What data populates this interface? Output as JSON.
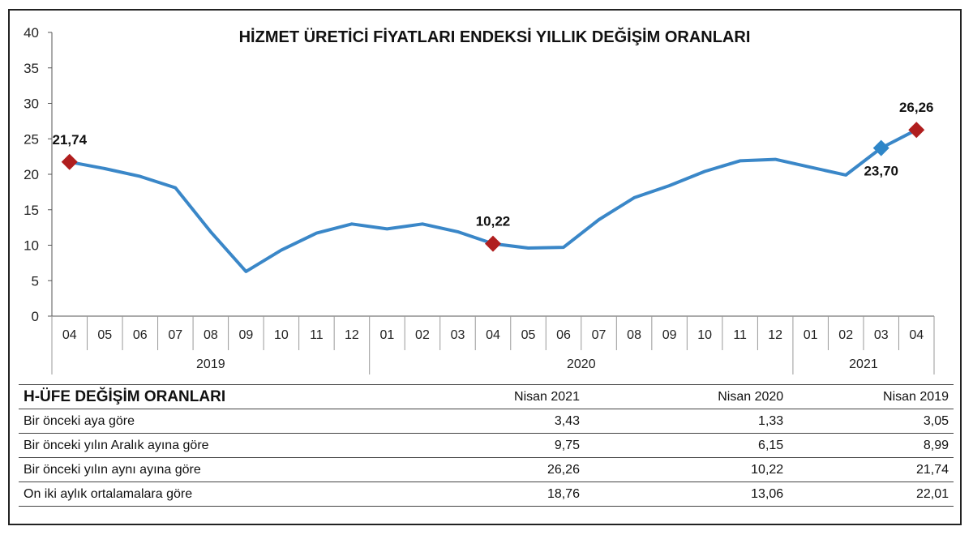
{
  "chart_data": {
    "type": "line",
    "title": "HİZMET ÜRETİCİ FİYATLARI ENDEKSİ YILLIK DEĞİŞİM ORANLARI",
    "ylim": [
      0,
      40
    ],
    "yticks": [
      "0",
      "5",
      "10",
      "15",
      "20",
      "25",
      "30",
      "35",
      "40"
    ],
    "grid": false,
    "categories": [
      "04",
      "05",
      "06",
      "07",
      "08",
      "09",
      "10",
      "11",
      "12",
      "01",
      "02",
      "03",
      "04",
      "05",
      "06",
      "07",
      "08",
      "09",
      "10",
      "11",
      "12",
      "01",
      "02",
      "03",
      "04"
    ],
    "years": [
      {
        "label": "2019",
        "count": 9
      },
      {
        "label": "2020",
        "count": 12
      },
      {
        "label": "2021",
        "count": 4
      }
    ],
    "series": [
      {
        "color": "#3a87c8",
        "values": [
          21.74,
          20.8,
          19.7,
          18.1,
          11.9,
          6.3,
          9.3,
          11.7,
          13.0,
          12.3,
          13.0,
          11.9,
          10.22,
          9.6,
          9.7,
          13.6,
          16.7,
          18.4,
          20.4,
          21.9,
          22.1,
          21.0,
          19.9,
          23.7,
          26.26
        ]
      }
    ],
    "markers": [
      {
        "index": 0,
        "value": 21.74,
        "label": "21,74",
        "color": "#b01e1e"
      },
      {
        "index": 12,
        "value": 10.22,
        "label": "10,22",
        "color": "#b01e1e"
      },
      {
        "index": 23,
        "value": 23.7,
        "label": "23,70",
        "color": "#2e86c8"
      },
      {
        "index": 24,
        "value": 26.26,
        "label": "26,26",
        "color": "#b01e1e"
      }
    ]
  },
  "table": {
    "title_prefix": "H-ÜFE ",
    "title_bold": "DEĞİŞİM ORANLARI",
    "columns": [
      "Nisan 2021",
      "Nisan 2020",
      "Nisan 2019"
    ],
    "rows": [
      {
        "label": "Bir önceki aya göre",
        "values": [
          "3,43",
          "1,33",
          "3,05"
        ]
      },
      {
        "label": "Bir önceki yılın Aralık ayına göre",
        "values": [
          "9,75",
          "6,15",
          "8,99"
        ]
      },
      {
        "label": "Bir önceki yılın aynı ayına göre",
        "values": [
          "26,26",
          "10,22",
          "21,74"
        ]
      },
      {
        "label": "On iki aylık ortalamalara göre",
        "values": [
          "18,76",
          "13,06",
          "22,01"
        ]
      }
    ]
  }
}
